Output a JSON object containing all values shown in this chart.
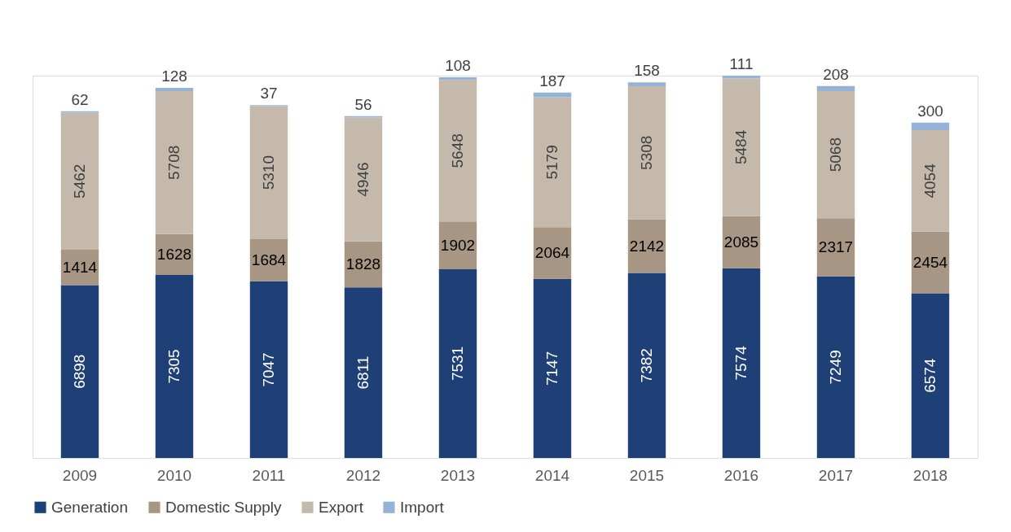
{
  "chart_data": {
    "type": "bar",
    "stacked": true,
    "data_labels": true,
    "legend": "bottom",
    "grid": false,
    "tick_labels": "x",
    "categories": [
      "2009",
      "2010",
      "2011",
      "2012",
      "2013",
      "2014",
      "2015",
      "2016",
      "2017",
      "2018"
    ],
    "series": [
      {
        "name": "Generation",
        "color": "#1f3f77",
        "values": [
          6898,
          7305,
          7047,
          6811,
          7531,
          7147,
          7382,
          7574,
          7249,
          6574
        ]
      },
      {
        "name": "Domestic Supply",
        "color": "#a69683",
        "values": [
          1414,
          1628,
          1684,
          1828,
          1902,
          2064,
          2142,
          2085,
          2317,
          2454
        ]
      },
      {
        "name": "Export",
        "color": "#c4b9ab",
        "values": [
          5462,
          5708,
          5310,
          4946,
          5648,
          5179,
          5308,
          5484,
          5068,
          4054
        ]
      },
      {
        "name": "Import",
        "color": "#95b3d7",
        "values": [
          62,
          128,
          37,
          56,
          108,
          187,
          158,
          111,
          208,
          300
        ]
      }
    ]
  }
}
